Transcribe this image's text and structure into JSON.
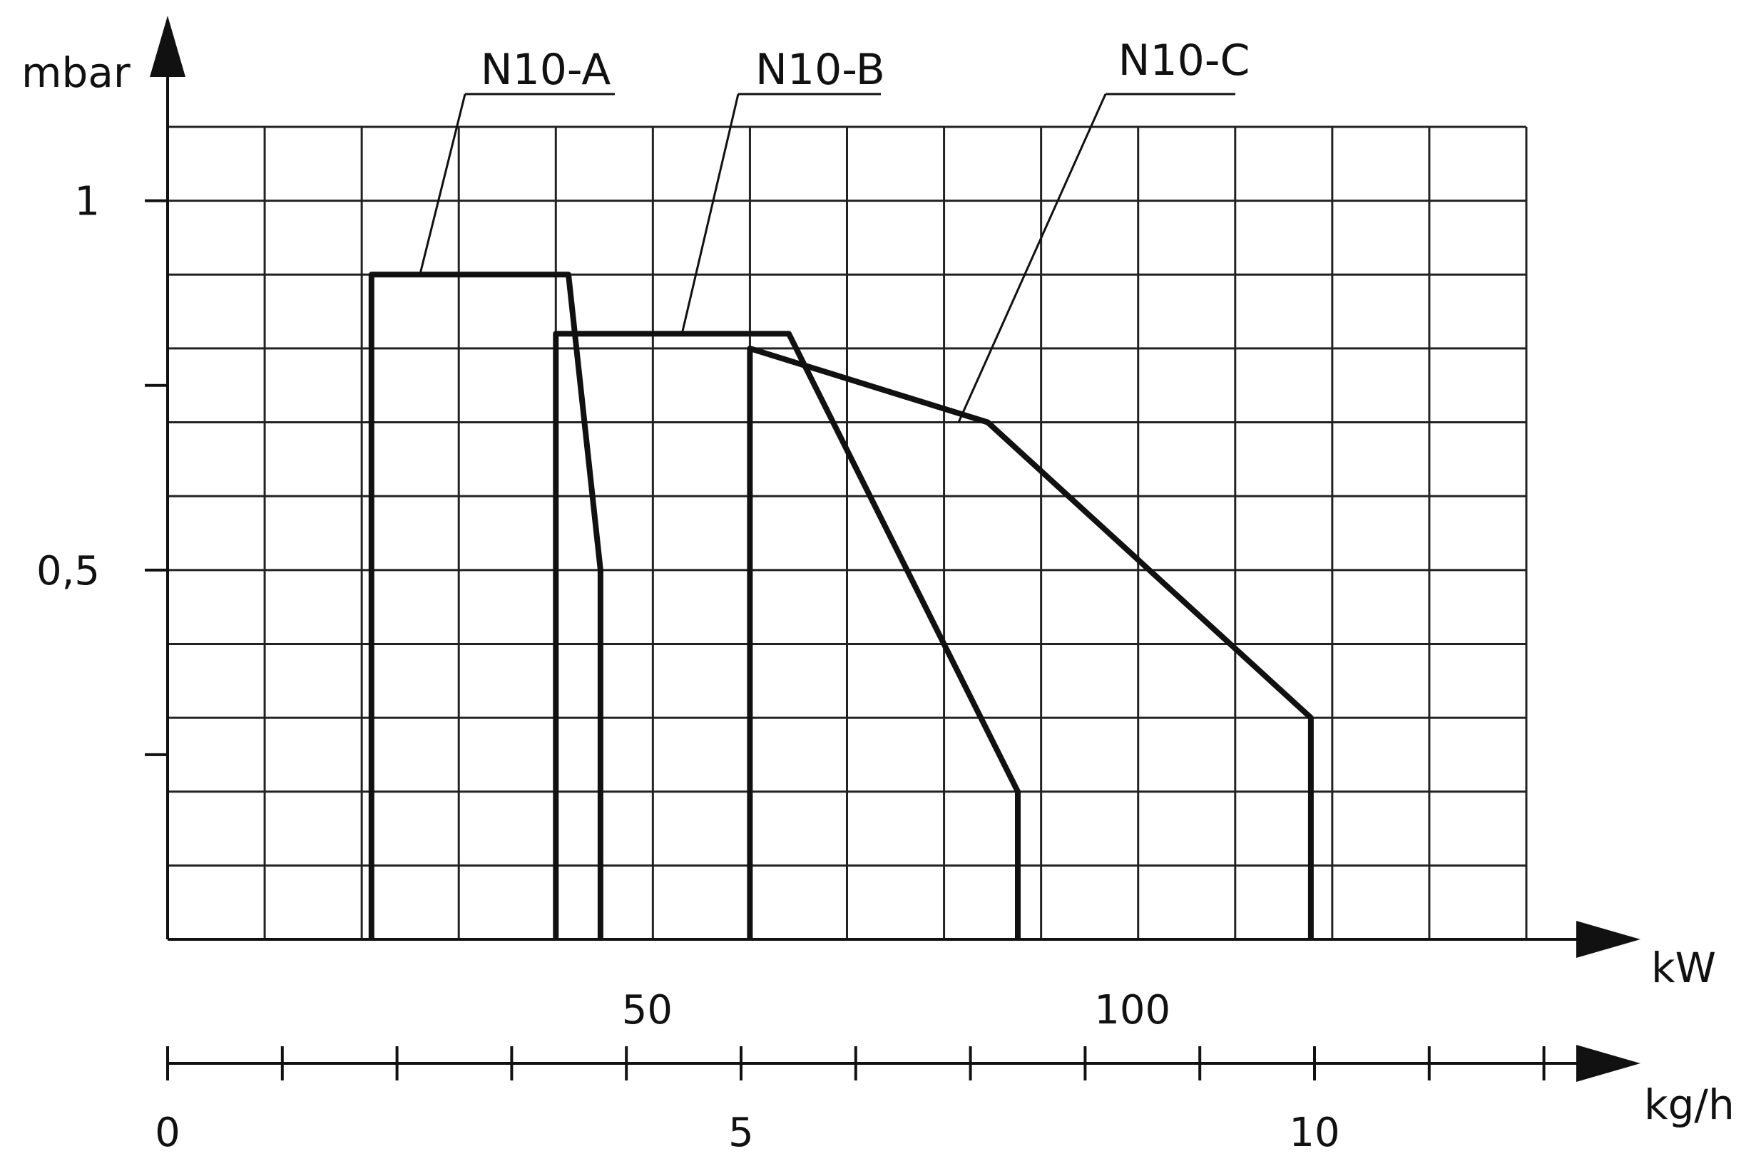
{
  "chart_data": {
    "type": "line",
    "title": "",
    "xlabel": "kW",
    "ylabel": "mbar",
    "secondary_xlabel": "kg/h",
    "xlim": [
      0,
      140
    ],
    "ylim": [
      0,
      1.1
    ],
    "secondary_xlim": [
      0,
      12.5
    ],
    "grid": true,
    "x_grid_step": 10,
    "y_grid_step": 0.1,
    "x_ticks": [
      {
        "value": 50,
        "label": "50"
      },
      {
        "value": 100,
        "label": "100"
      }
    ],
    "y_ticks": [
      {
        "value": 0.25,
        "label": ""
      },
      {
        "value": 0.5,
        "label": "0,5"
      },
      {
        "value": 0.75,
        "label": ""
      },
      {
        "value": 1.0,
        "label": "1"
      }
    ],
    "secondary_x_ticks": [
      {
        "value": 0,
        "label": "0"
      },
      {
        "value": 1,
        "label": ""
      },
      {
        "value": 2,
        "label": ""
      },
      {
        "value": 3,
        "label": ""
      },
      {
        "value": 4,
        "label": ""
      },
      {
        "value": 5,
        "label": "5"
      },
      {
        "value": 6,
        "label": ""
      },
      {
        "value": 7,
        "label": ""
      },
      {
        "value": 8,
        "label": ""
      },
      {
        "value": 9,
        "label": ""
      },
      {
        "value": 10,
        "label": "10"
      },
      {
        "value": 11,
        "label": ""
      },
      {
        "value": 12,
        "label": ""
      }
    ],
    "series": [
      {
        "name": "N10-A",
        "x": [
          21,
          21,
          41.3,
          44.6,
          44.6
        ],
        "y": [
          0,
          0.9,
          0.9,
          0.5,
          0
        ]
      },
      {
        "name": "N10-B",
        "x": [
          40,
          40,
          64,
          87.6,
          87.6
        ],
        "y": [
          0,
          0.82,
          0.82,
          0.2,
          0
        ]
      },
      {
        "name": "N10-C",
        "x": [
          60,
          60,
          84.5,
          117.8,
          117.8
        ],
        "y": [
          0,
          0.8,
          0.7,
          0.3,
          0
        ]
      }
    ],
    "annotations": [
      {
        "series": "N10-A",
        "text": "N10-A",
        "leader_to": [
          26,
          0.9
        ],
        "position": "top"
      },
      {
        "series": "N10-B",
        "text": "N10-B",
        "leader_to": [
          53,
          0.82
        ],
        "position": "top"
      },
      {
        "series": "N10-C",
        "text": "N10-C",
        "leader_to": [
          81.5,
          0.7
        ],
        "position": "top"
      }
    ],
    "colors": {
      "line": "#111111",
      "grid": "#222222",
      "background": "#ffffff"
    }
  }
}
